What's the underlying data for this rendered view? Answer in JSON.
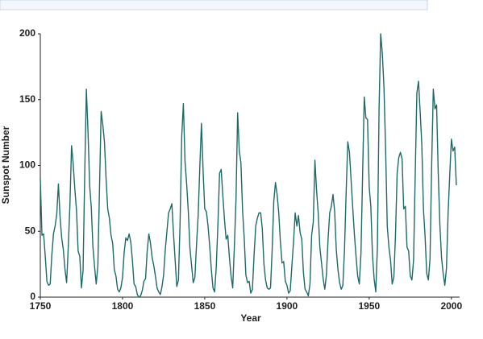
{
  "chart_data": {
    "type": "line",
    "x_label": "Year",
    "y_label": "Sunspot Number",
    "x": [
      1750,
      1751,
      1752,
      1753,
      1754,
      1755,
      1756,
      1757,
      1758,
      1759,
      1760,
      1761,
      1762,
      1763,
      1764,
      1765,
      1766,
      1767,
      1768,
      1769,
      1770,
      1771,
      1772,
      1773,
      1774,
      1775,
      1776,
      1777,
      1778,
      1779,
      1780,
      1781,
      1782,
      1783,
      1784,
      1785,
      1786,
      1787,
      1788,
      1789,
      1790,
      1791,
      1792,
      1793,
      1794,
      1795,
      1796,
      1797,
      1798,
      1799,
      1800,
      1801,
      1802,
      1803,
      1804,
      1805,
      1806,
      1807,
      1808,
      1809,
      1810,
      1811,
      1812,
      1813,
      1814,
      1815,
      1816,
      1817,
      1818,
      1819,
      1820,
      1821,
      1822,
      1823,
      1824,
      1825,
      1826,
      1827,
      1828,
      1829,
      1830,
      1831,
      1832,
      1833,
      1834,
      1835,
      1836,
      1837,
      1838,
      1839,
      1840,
      1841,
      1842,
      1843,
      1844,
      1845,
      1846,
      1847,
      1848,
      1849,
      1850,
      1851,
      1852,
      1853,
      1854,
      1855,
      1856,
      1857,
      1858,
      1859,
      1860,
      1861,
      1862,
      1863,
      1864,
      1865,
      1866,
      1867,
      1868,
      1869,
      1870,
      1871,
      1872,
      1873,
      1874,
      1875,
      1876,
      1877,
      1878,
      1879,
      1880,
      1881,
      1882,
      1883,
      1884,
      1885,
      1886,
      1887,
      1888,
      1889,
      1890,
      1891,
      1892,
      1893,
      1894,
      1895,
      1896,
      1897,
      1898,
      1899,
      1900,
      1901,
      1902,
      1903,
      1904,
      1905,
      1906,
      1907,
      1908,
      1909,
      1910,
      1911,
      1912,
      1913,
      1914,
      1915,
      1916,
      1917,
      1918,
      1919,
      1920,
      1921,
      1922,
      1923,
      1924,
      1925,
      1926,
      1927,
      1928,
      1929,
      1930,
      1931,
      1932,
      1933,
      1934,
      1935,
      1936,
      1937,
      1938,
      1939,
      1940,
      1941,
      1942,
      1943,
      1944,
      1945,
      1946,
      1947,
      1948,
      1949,
      1950,
      1951,
      1952,
      1953,
      1954,
      1955,
      1956,
      1957,
      1958,
      1959,
      1960,
      1961,
      1962,
      1963,
      1964,
      1965,
      1966,
      1967,
      1968,
      1969,
      1970,
      1971,
      1972,
      1973,
      1974,
      1975,
      1976,
      1977,
      1978,
      1979,
      1980,
      1981,
      1982,
      1983,
      1984,
      1985,
      1986,
      1987,
      1988,
      1989,
      1990,
      1991,
      1992,
      1993,
      1994,
      1995,
      1996,
      1997,
      1998,
      1999,
      2000,
      2001,
      2002,
      2003
    ],
    "series": [
      {
        "color": "#1f6a68",
        "values": [
          90,
          47,
          48,
          31,
          12,
          9,
          10,
          32,
          48,
          54,
          63,
          86,
          61,
          45,
          36,
          21,
          11,
          38,
          70,
          115,
          101,
          82,
          66,
          35,
          31,
          7,
          20,
          93,
          158,
          126,
          85,
          68,
          38,
          23,
          10,
          24,
          83,
          141,
          131,
          118,
          90,
          67,
          60,
          47,
          41,
          21,
          16,
          6,
          4,
          7,
          15,
          34,
          45,
          43,
          48,
          42,
          28,
          10,
          8,
          2,
          0,
          1,
          5,
          12,
          14,
          35,
          48,
          41,
          30,
          24,
          16,
          7,
          4,
          2,
          8,
          17,
          36,
          50,
          64,
          67,
          71,
          48,
          28,
          8,
          13,
          57,
          122,
          147,
          103,
          86,
          65,
          37,
          24,
          11,
          15,
          40,
          62,
          99,
          132,
          96,
          67,
          65,
          54,
          39,
          21,
          7,
          4,
          23,
          55,
          94,
          97,
          77,
          59,
          44,
          47,
          30,
          16,
          7,
          38,
          74,
          140,
          111,
          102,
          66,
          45,
          17,
          11,
          12,
          3,
          6,
          32,
          54,
          60,
          64,
          64,
          52,
          25,
          13,
          7,
          6,
          7,
          36,
          73,
          87,
          78,
          64,
          42,
          26,
          27,
          12,
          9,
          3,
          5,
          24,
          42,
          64,
          54,
          62,
          49,
          44,
          19,
          6,
          4,
          1,
          10,
          47,
          57,
          104,
          81,
          64,
          38,
          26,
          14,
          6,
          17,
          44,
          64,
          69,
          78,
          65,
          36,
          21,
          11,
          6,
          9,
          36,
          80,
          118,
          110,
          89,
          68,
          48,
          31,
          16,
          10,
          33,
          93,
          152,
          136,
          135,
          84,
          69,
          32,
          14,
          4,
          38,
          142,
          200,
          185,
          159,
          112,
          54,
          38,
          28,
          10,
          15,
          47,
          94,
          106,
          110,
          105,
          67,
          69,
          38,
          35,
          16,
          13,
          28,
          93,
          155,
          164,
          141,
          116,
          67,
          46,
          18,
          13,
          29,
          100,
          158,
          143,
          146,
          94,
          55,
          30,
          18,
          9,
          22,
          64,
          93,
          120,
          111,
          114,
          85
        ]
      }
    ],
    "xlim": [
      1750,
      2005
    ],
    "xticks": [
      1750,
      1800,
      1850,
      1900,
      1950,
      2000
    ],
    "ylim": [
      0,
      200
    ],
    "yticks": [
      0,
      50,
      100,
      150,
      200
    ]
  }
}
